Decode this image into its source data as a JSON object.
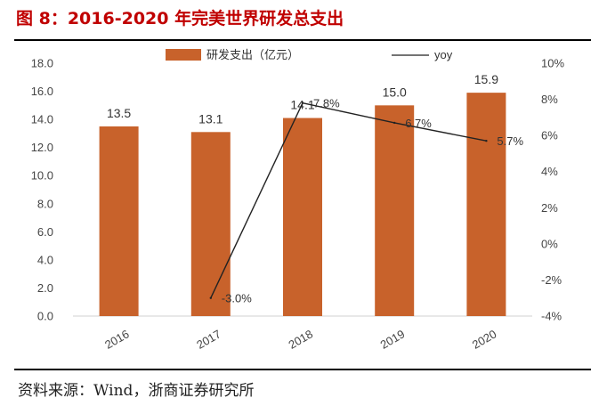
{
  "figure": {
    "title": "图 8：2016-2020 年完美世界研发总支出",
    "source": "资料来源：Wind，浙商证券研究所"
  },
  "chart_data": {
    "type": "bar",
    "categories": [
      "2016",
      "2017",
      "2018",
      "2019",
      "2020"
    ],
    "series": [
      {
        "name": "研发支出（亿元）",
        "kind": "bar",
        "axis": "left",
        "values": [
          13.5,
          13.1,
          14.1,
          15.0,
          15.9
        ],
        "labels": [
          "13.5",
          "13.1",
          "14.1",
          "15.0",
          "15.9"
        ],
        "color": "#c8622b"
      },
      {
        "name": "yoy",
        "kind": "line",
        "axis": "right",
        "values": [
          null,
          -3.0,
          7.8,
          6.7,
          5.7
        ],
        "labels": [
          "",
          "-3.0%",
          "7.8%",
          "6.7%",
          "5.7%"
        ],
        "color": "#222222"
      }
    ],
    "y_left": {
      "min": 0,
      "max": 18,
      "ticks": [
        "0.0",
        "2.0",
        "4.0",
        "6.0",
        "8.0",
        "10.0",
        "12.0",
        "14.0",
        "16.0",
        "18.0"
      ]
    },
    "y_right": {
      "min": -4,
      "max": 10,
      "ticks": [
        "-4%",
        "-2%",
        "0%",
        "2%",
        "4%",
        "6%",
        "8%",
        "10%"
      ]
    },
    "legend_position": "top",
    "grid": false
  }
}
